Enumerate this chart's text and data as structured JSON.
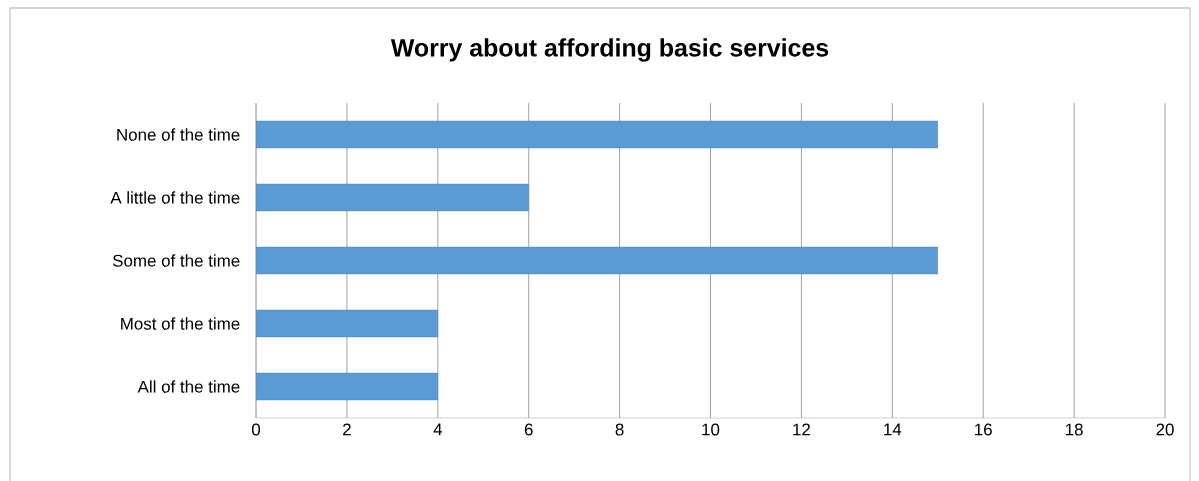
{
  "chart_data": {
    "type": "bar",
    "orientation": "horizontal",
    "title": "Worry about affording basic services",
    "categories": [
      "None of the time",
      "A little of the time",
      "Some of the time",
      "Most of the time",
      "All of the time"
    ],
    "values": [
      15,
      6,
      15,
      4,
      4
    ],
    "color": "#5b9bd5",
    "xlim": [
      0,
      20
    ],
    "xticks": [
      0,
      2,
      4,
      6,
      8,
      10,
      12,
      14,
      16,
      18,
      20
    ],
    "grid": "x"
  }
}
